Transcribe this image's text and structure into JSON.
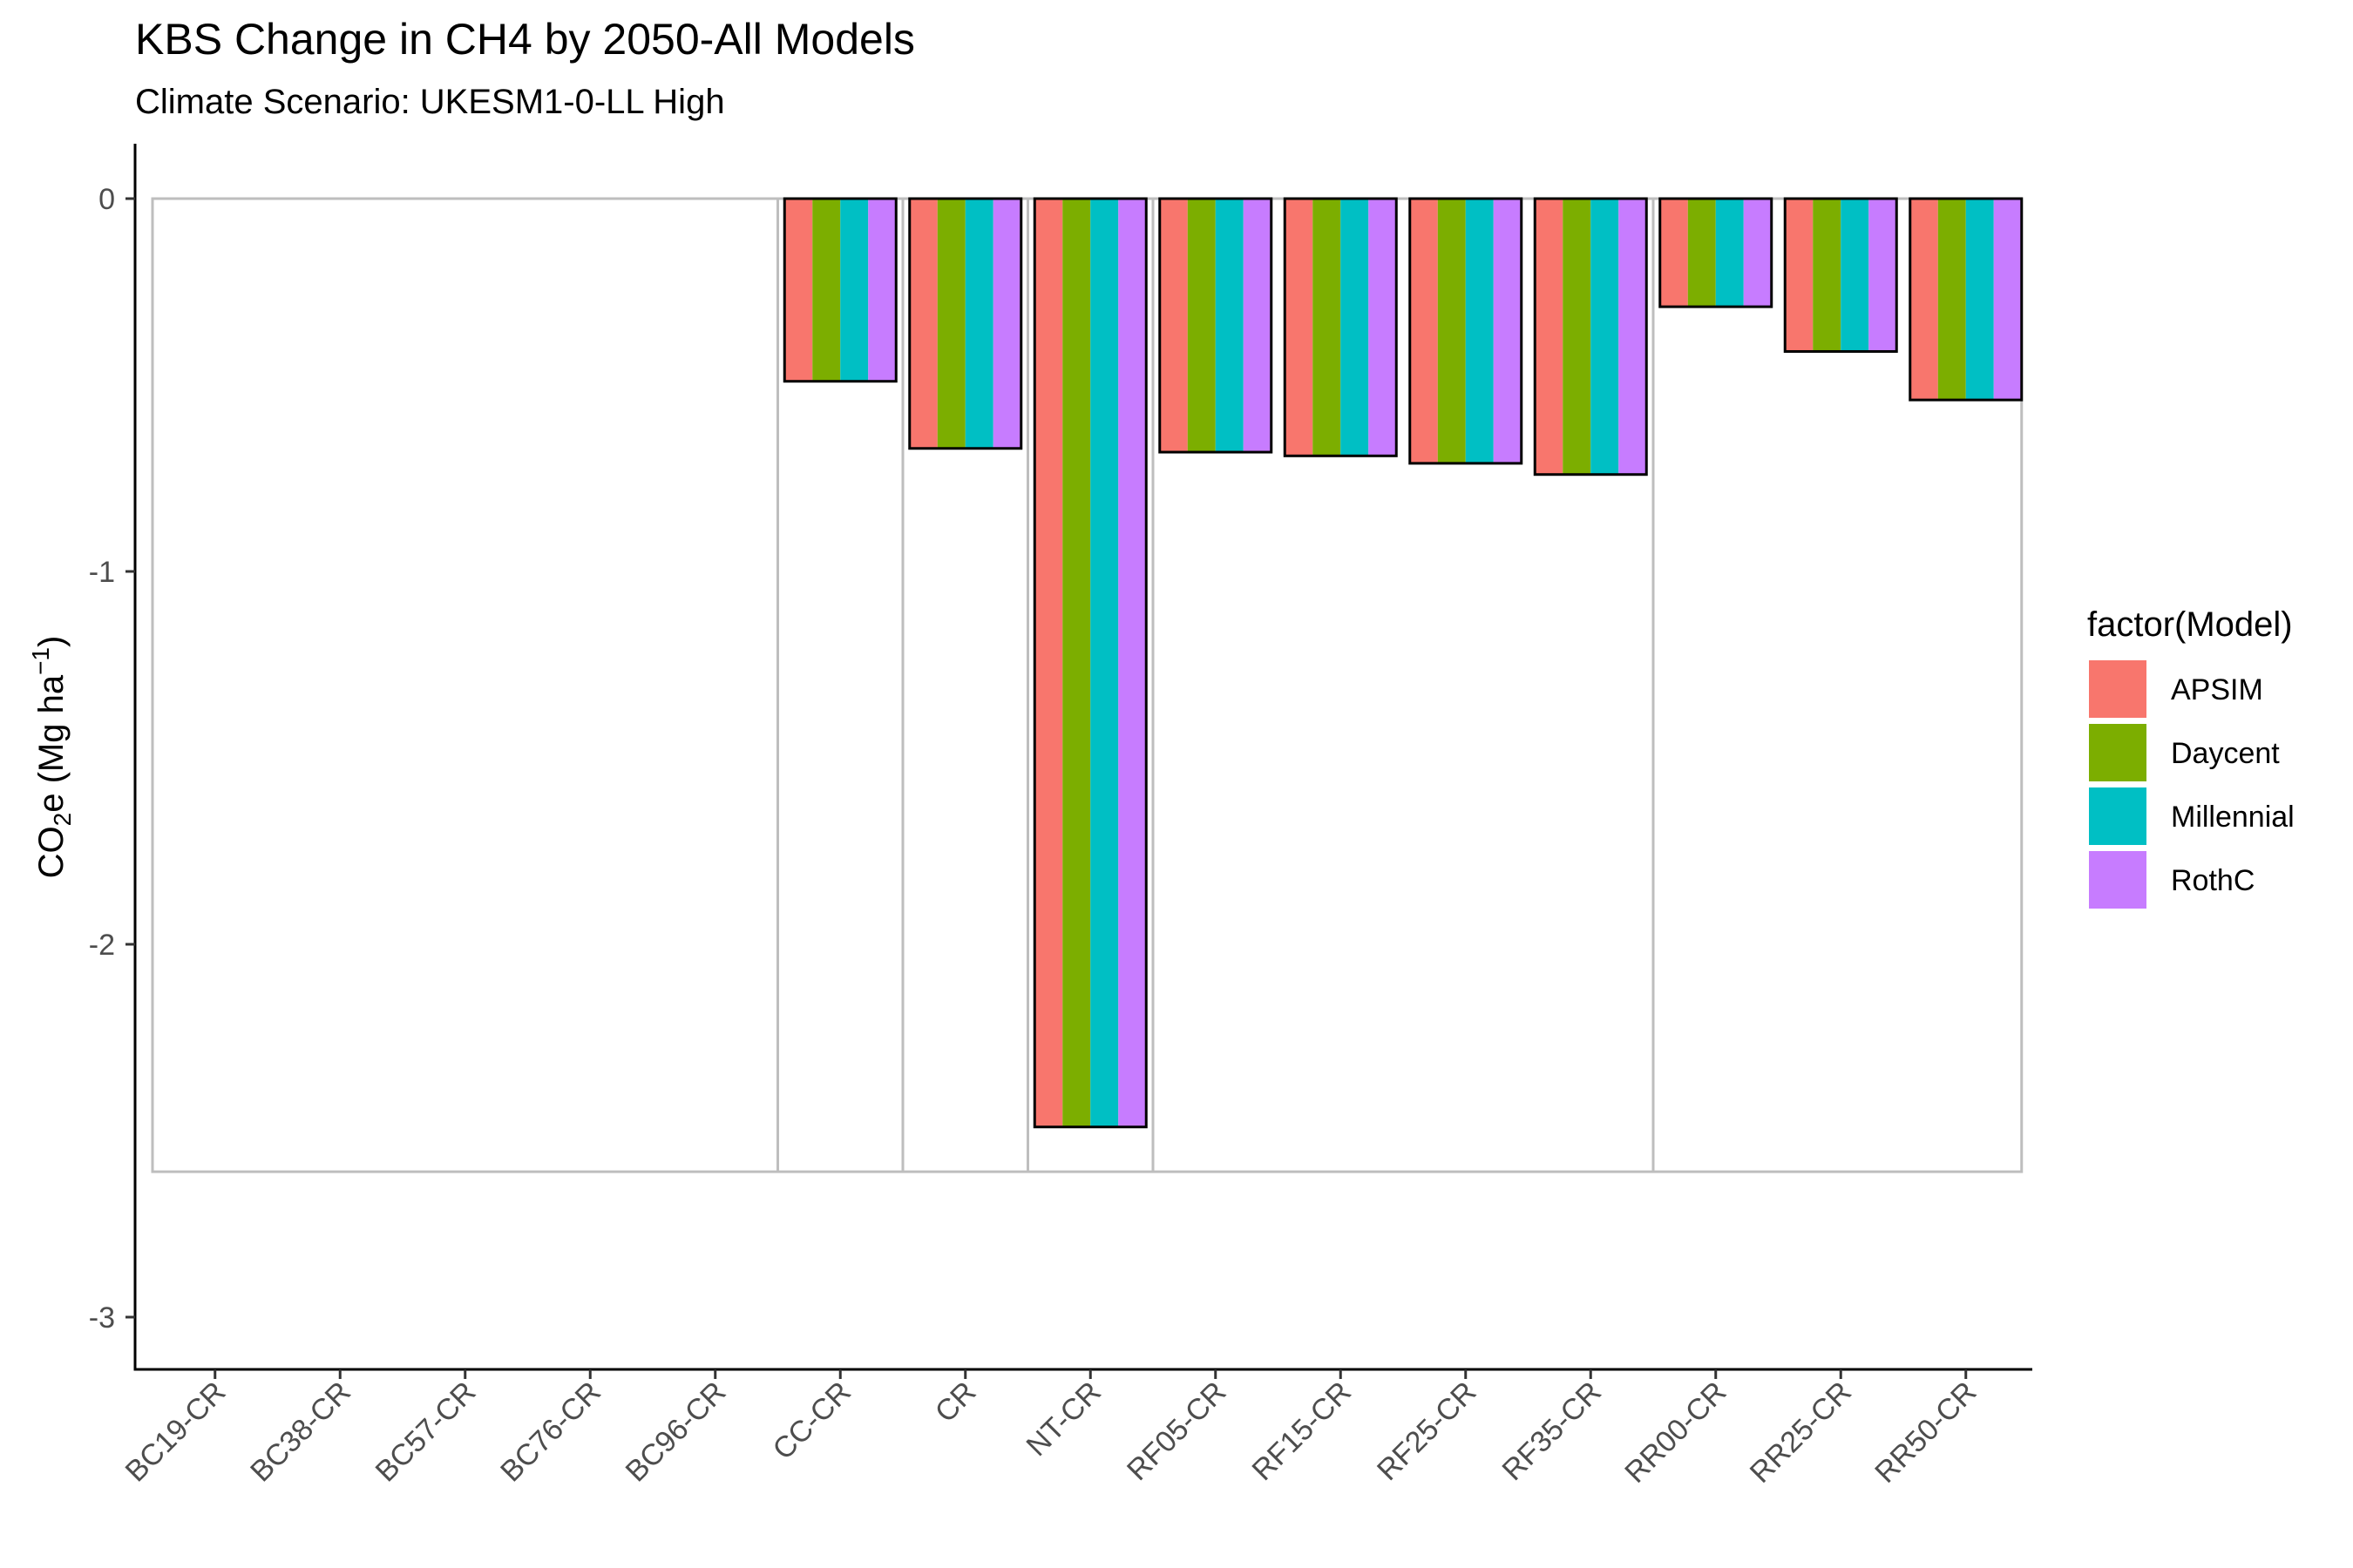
{
  "chart_data": {
    "type": "bar",
    "title": "KBS Change in CH4 by 2050-All Models",
    "subtitle": "Climate Scenario: UKESM1-0-LL High",
    "xlabel": "",
    "ylabel_main": "CO",
    "ylabel_sub": "2",
    "ylabel_rest": "e (Mg ha",
    "ylabel_sup": "−1",
    "ylabel_close": ")",
    "ylim": [
      -3.15,
      0.15
    ],
    "yticks": [
      0,
      -1,
      -2,
      -3
    ],
    "ytick_labels": [
      "0",
      "-1",
      "-2",
      "-3"
    ],
    "categories": [
      "BC19-CR",
      "BC38-CR",
      "BC57-CR",
      "BC76-CR",
      "BC96-CR",
      "CC-CR",
      "CR",
      "NT-CR",
      "RF05-CR",
      "RF15-CR",
      "RF25-CR",
      "RF35-CR",
      "RR00-CR",
      "RR25-CR",
      "RR50-CR"
    ],
    "series": [
      {
        "name": "APSIM",
        "color": "#F8766D",
        "values": [
          null,
          null,
          null,
          null,
          null,
          -0.49,
          -0.67,
          -2.49,
          -0.68,
          -0.69,
          -0.71,
          -0.74,
          -0.29,
          -0.41,
          -0.54
        ]
      },
      {
        "name": "Daycent",
        "color": "#7CAE00",
        "values": [
          null,
          null,
          null,
          null,
          null,
          -0.49,
          -0.67,
          -2.49,
          -0.68,
          -0.69,
          -0.71,
          -0.74,
          -0.29,
          -0.41,
          -0.54
        ]
      },
      {
        "name": "Millennial",
        "color": "#00BFC4",
        "values": [
          null,
          null,
          null,
          null,
          null,
          -0.49,
          -0.67,
          -2.49,
          -0.68,
          -0.69,
          -0.71,
          -0.74,
          -0.29,
          -0.41,
          -0.54
        ]
      },
      {
        "name": "RothC",
        "color": "#C77CFF",
        "values": [
          null,
          null,
          null,
          null,
          null,
          -0.49,
          -0.67,
          -2.49,
          -0.68,
          -0.69,
          -0.71,
          -0.74,
          -0.29,
          -0.41,
          -0.54
        ]
      }
    ],
    "reference_box": {
      "ymin": -2.61,
      "breaks_after": [
        "BC96-CR",
        "CC-CR",
        "CR",
        "NT-CR",
        "RF35-CR"
      ]
    },
    "legend": {
      "title": "factor(Model)",
      "position": "right",
      "items": [
        "APSIM",
        "Daycent",
        "Millennial",
        "RothC"
      ]
    },
    "grid": false
  }
}
